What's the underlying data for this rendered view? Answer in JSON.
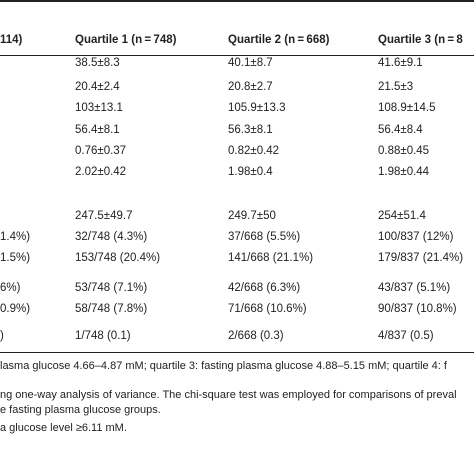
{
  "table": {
    "header": [
      "114)",
      "Quartile 1 (n = 748)",
      "Quartile 2 (n = 668)",
      "Quartile 3 (n = 8"
    ],
    "rows": [
      {
        "cells": [
          "38.5±8.3",
          "40.1±8.7",
          "41.6±9.1"
        ]
      },
      {
        "cells": [
          "20.4±2.4",
          "20.8±2.7",
          "21.5±3"
        ]
      },
      {
        "cells": [
          "103±13.1",
          "105.9±13.3",
          "108.9±14.5"
        ]
      },
      {
        "cells": [
          "56.4±8.1",
          "56.3±8.1",
          "56.4±8.4"
        ]
      },
      {
        "cells": [
          "0.76±0.37",
          "0.82±0.42",
          "0.88±0.45"
        ]
      },
      {
        "cells": [
          "2.02±0.42",
          "1.98±0.4",
          "1.98±0.44"
        ]
      },
      {
        "cells": [
          "247.5±49.7",
          "249.7±50",
          "254±51.4"
        ]
      },
      {
        "lead": "1.4%)",
        "cells": [
          "32/748 (4.3%)",
          "37/668 (5.5%)",
          "100/837 (12%)"
        ]
      },
      {
        "lead": "1.5%)",
        "cells": [
          "153/748 (20.4%)",
          "141/668 (21.1%)",
          "179/837 (21.4%)"
        ]
      },
      {
        "lead": "6%)",
        "cells": [
          "53/748 (7.1%)",
          "42/668 (6.3%)",
          "43/837 (5.1%)"
        ]
      },
      {
        "lead": "0.9%)",
        "cells": [
          "58/748 (7.8%)",
          "71/668 (10.6%)",
          "90/837 (10.8%)"
        ]
      },
      {
        "lead": ")",
        "cells": [
          "1/748 (0.1)",
          "2/668 (0.3)",
          "4/837 (0.5)"
        ]
      }
    ]
  },
  "footnotes": [
    "lasma glucose 4.66–4.87 mM; quartile 3: fasting plasma glucose 4.88–5.15 mM; quartile 4: f",
    "ng one-way analysis of variance. The chi-square test was employed for comparisons of preval",
    "e fasting plasma glucose groups.",
    "a glucose level ≥6.11 mM."
  ]
}
